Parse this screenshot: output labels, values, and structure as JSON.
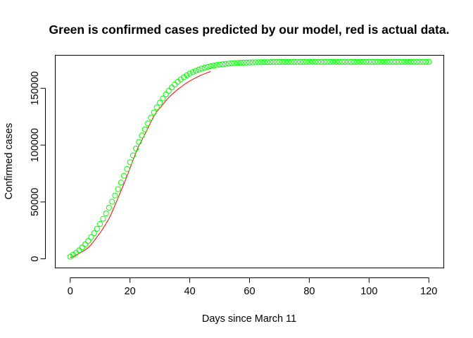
{
  "chart_data": {
    "type": "scatter",
    "title": "Green is confirmed cases predicted by our model, red is actual data.",
    "xlabel": "Days since March 11",
    "ylabel": "Confirmed cases",
    "xlim": [
      -5,
      125
    ],
    "ylim": [
      -8000,
      179000
    ],
    "xticks": [
      0,
      20,
      40,
      60,
      80,
      100,
      120
    ],
    "yticks": [
      0,
      50000,
      100000,
      150000
    ],
    "ytick_labels": [
      "0",
      "50000",
      "100000",
      "150000"
    ],
    "grid": false,
    "legend": "none",
    "colors": {
      "model": "#00ff00",
      "actual": "#ff0000",
      "axis": "#000000"
    },
    "series": [
      {
        "type": "scatter",
        "marker": "open-circle",
        "color": "#00ff00",
        "x": [
          0,
          1,
          2,
          3,
          4,
          5,
          6,
          7,
          8,
          9,
          10,
          11,
          12,
          13,
          14,
          15,
          16,
          17,
          18,
          19,
          20,
          21,
          22,
          23,
          24,
          25,
          26,
          27,
          28,
          29,
          30,
          31,
          32,
          33,
          34,
          35,
          36,
          37,
          38,
          39,
          40,
          41,
          42,
          43,
          44,
          45,
          46,
          47,
          48,
          49,
          50,
          51,
          52,
          53,
          54,
          55,
          56,
          57,
          58,
          59,
          60,
          61,
          62,
          63,
          64,
          65,
          66,
          67,
          68,
          69,
          70,
          71,
          72,
          73,
          74,
          75,
          76,
          77,
          78,
          79,
          80,
          81,
          82,
          83,
          84,
          85,
          86,
          87,
          88,
          89,
          90,
          91,
          92,
          93,
          94,
          95,
          96,
          97,
          98,
          99,
          100,
          101,
          102,
          103,
          104,
          105,
          106,
          107,
          108,
          109,
          110,
          111,
          112,
          113,
          114,
          115,
          116,
          117,
          118,
          119,
          120
        ],
        "y": [
          1900,
          3600,
          5400,
          7600,
          10000,
          12700,
          15700,
          19000,
          22600,
          26500,
          30700,
          35200,
          39900,
          45000,
          50200,
          55700,
          61300,
          67100,
          73000,
          79000,
          85000,
          91000,
          97000,
          102800,
          108500,
          113900,
          119100,
          124100,
          128800,
          133200,
          137300,
          141100,
          144600,
          147800,
          150700,
          153300,
          155700,
          157800,
          159700,
          161400,
          162900,
          164200,
          165400,
          166400,
          167300,
          168100,
          168800,
          169400,
          169900,
          170400,
          170800,
          171100,
          171400,
          171700,
          171900,
          172100,
          172300,
          172400,
          172500,
          172600,
          172700,
          172800,
          172850,
          172900,
          172950,
          173000,
          173000,
          173050,
          173100,
          173100,
          173100,
          173150,
          173150,
          173150,
          173200,
          173200,
          173200,
          173200,
          173200,
          173200,
          173250,
          173250,
          173250,
          173250,
          173250,
          173250,
          173250,
          173250,
          173250,
          173250,
          173250,
          173250,
          173250,
          173250,
          173250,
          173250,
          173250,
          173250,
          173250,
          173250,
          173250,
          173250,
          173250,
          173250,
          173250,
          173250,
          173250,
          173250,
          173250,
          173250,
          173250,
          173250,
          173250,
          173250,
          173250,
          173250,
          173250,
          173250,
          173250,
          173250,
          173250
        ]
      },
      {
        "type": "line",
        "color": "#ff0000",
        "x": [
          0,
          1,
          2,
          3,
          4,
          5,
          6,
          7,
          8,
          9,
          10,
          11,
          12,
          13,
          14,
          15,
          16,
          17,
          18,
          19,
          20,
          21,
          22,
          23,
          24,
          25,
          26,
          27,
          28,
          29,
          30,
          31,
          32,
          33,
          34,
          35,
          36,
          37,
          38,
          39,
          40,
          41,
          42,
          43,
          44,
          45,
          46,
          47
        ],
        "y": [
          1000,
          2000,
          3400,
          4800,
          6200,
          7800,
          9800,
          12500,
          15800,
          19500,
          22800,
          26800,
          31000,
          35500,
          41000,
          47200,
          53500,
          59800,
          66000,
          72500,
          79500,
          86500,
          93500,
          99500,
          104500,
          109500,
          115000,
          120500,
          125500,
          129500,
          132500,
          135800,
          139000,
          142000,
          144500,
          146800,
          149000,
          151000,
          153000,
          154800,
          156300,
          157800,
          159200,
          160500,
          161700,
          162800,
          163800,
          164800
        ]
      }
    ]
  }
}
